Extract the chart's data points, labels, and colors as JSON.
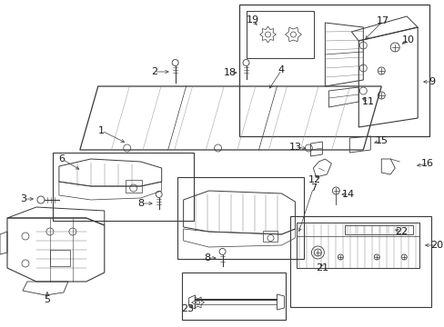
{
  "bg_color": "#ffffff",
  "line_color": "#3a3a3a",
  "label_color": "#1a1a1a",
  "fig_width": 4.89,
  "fig_height": 3.6,
  "dpi": 100
}
